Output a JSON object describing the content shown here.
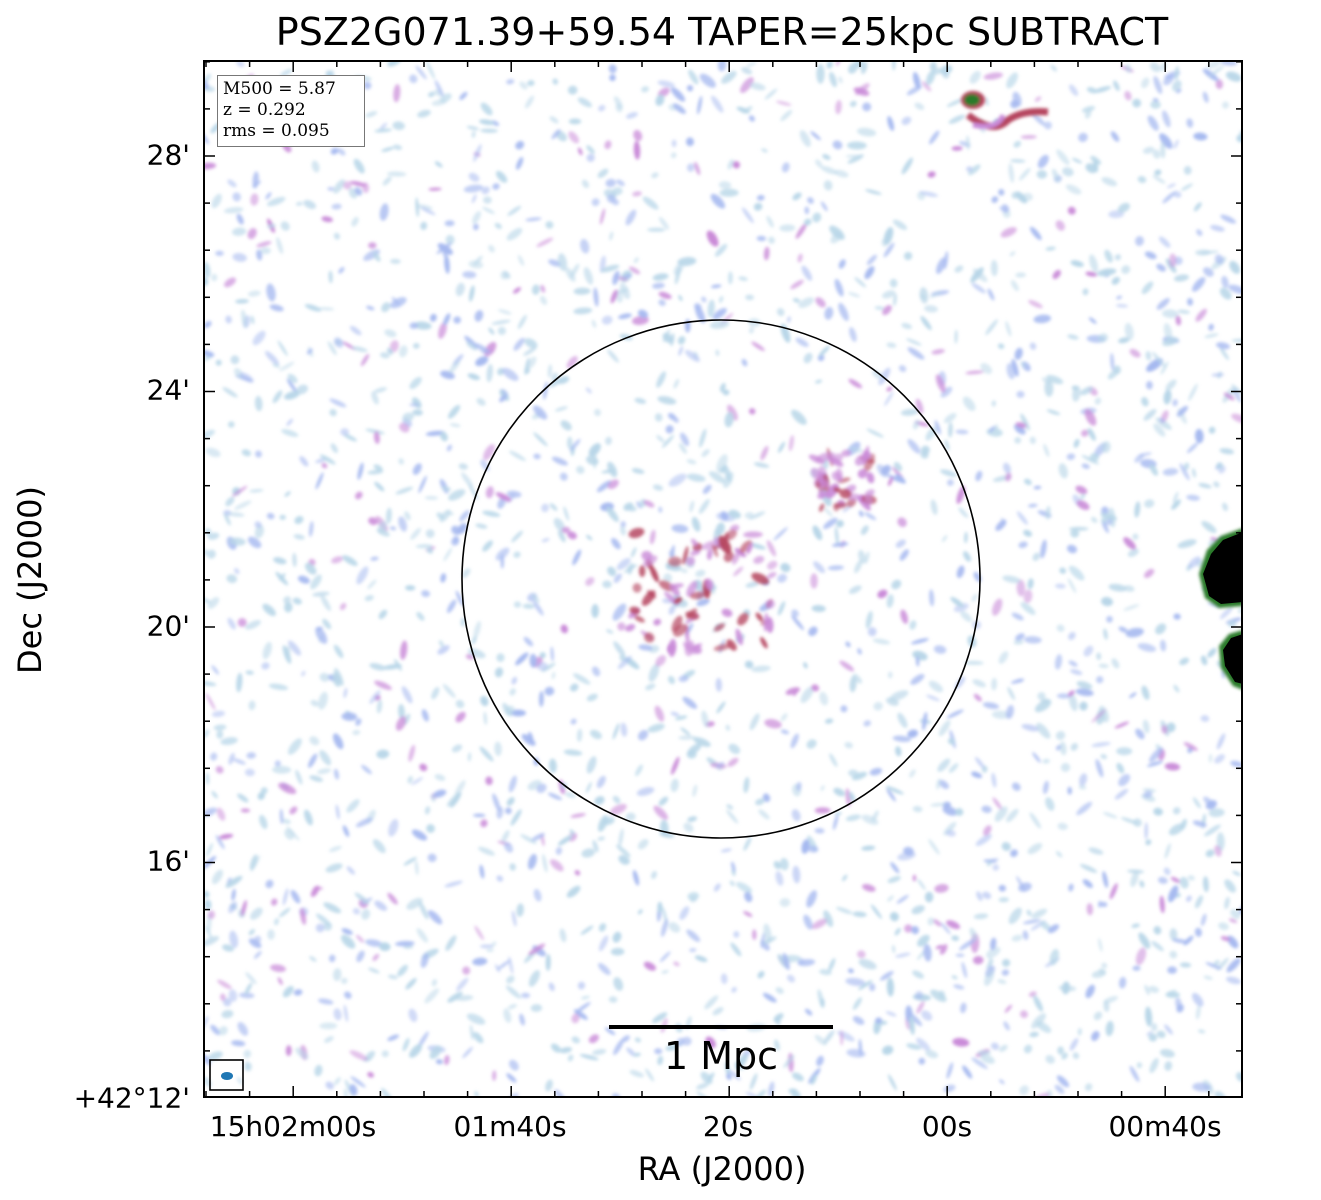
{
  "title": "PSZ2G071.39+59.54 TAPER=25kpc SUBTRACT",
  "axes": {
    "xlabel": "RA (J2000)",
    "ylabel": "Dec (J2000)",
    "xticks": [
      "15h02m00s",
      "01m40s",
      "20s",
      "00s",
      "00m40s"
    ],
    "yticks": [
      "28'",
      "24'",
      "20'",
      "16'",
      "+42°12'"
    ]
  },
  "info": {
    "m500": "M500 = 5.87",
    "z": "z = 0.292",
    "rms": "rms = 0.095"
  },
  "scalebar": {
    "label": "1 Mpc"
  },
  "colors": {
    "noise_light": "#b8d6e8",
    "noise_blue": "#a6b9f0",
    "emission_pink": "#c98ad8",
    "emission_red": "#b5445e",
    "bright_source": "#000000",
    "bright_edge": "#2a7a2a",
    "beam": "#1f77b4"
  }
}
